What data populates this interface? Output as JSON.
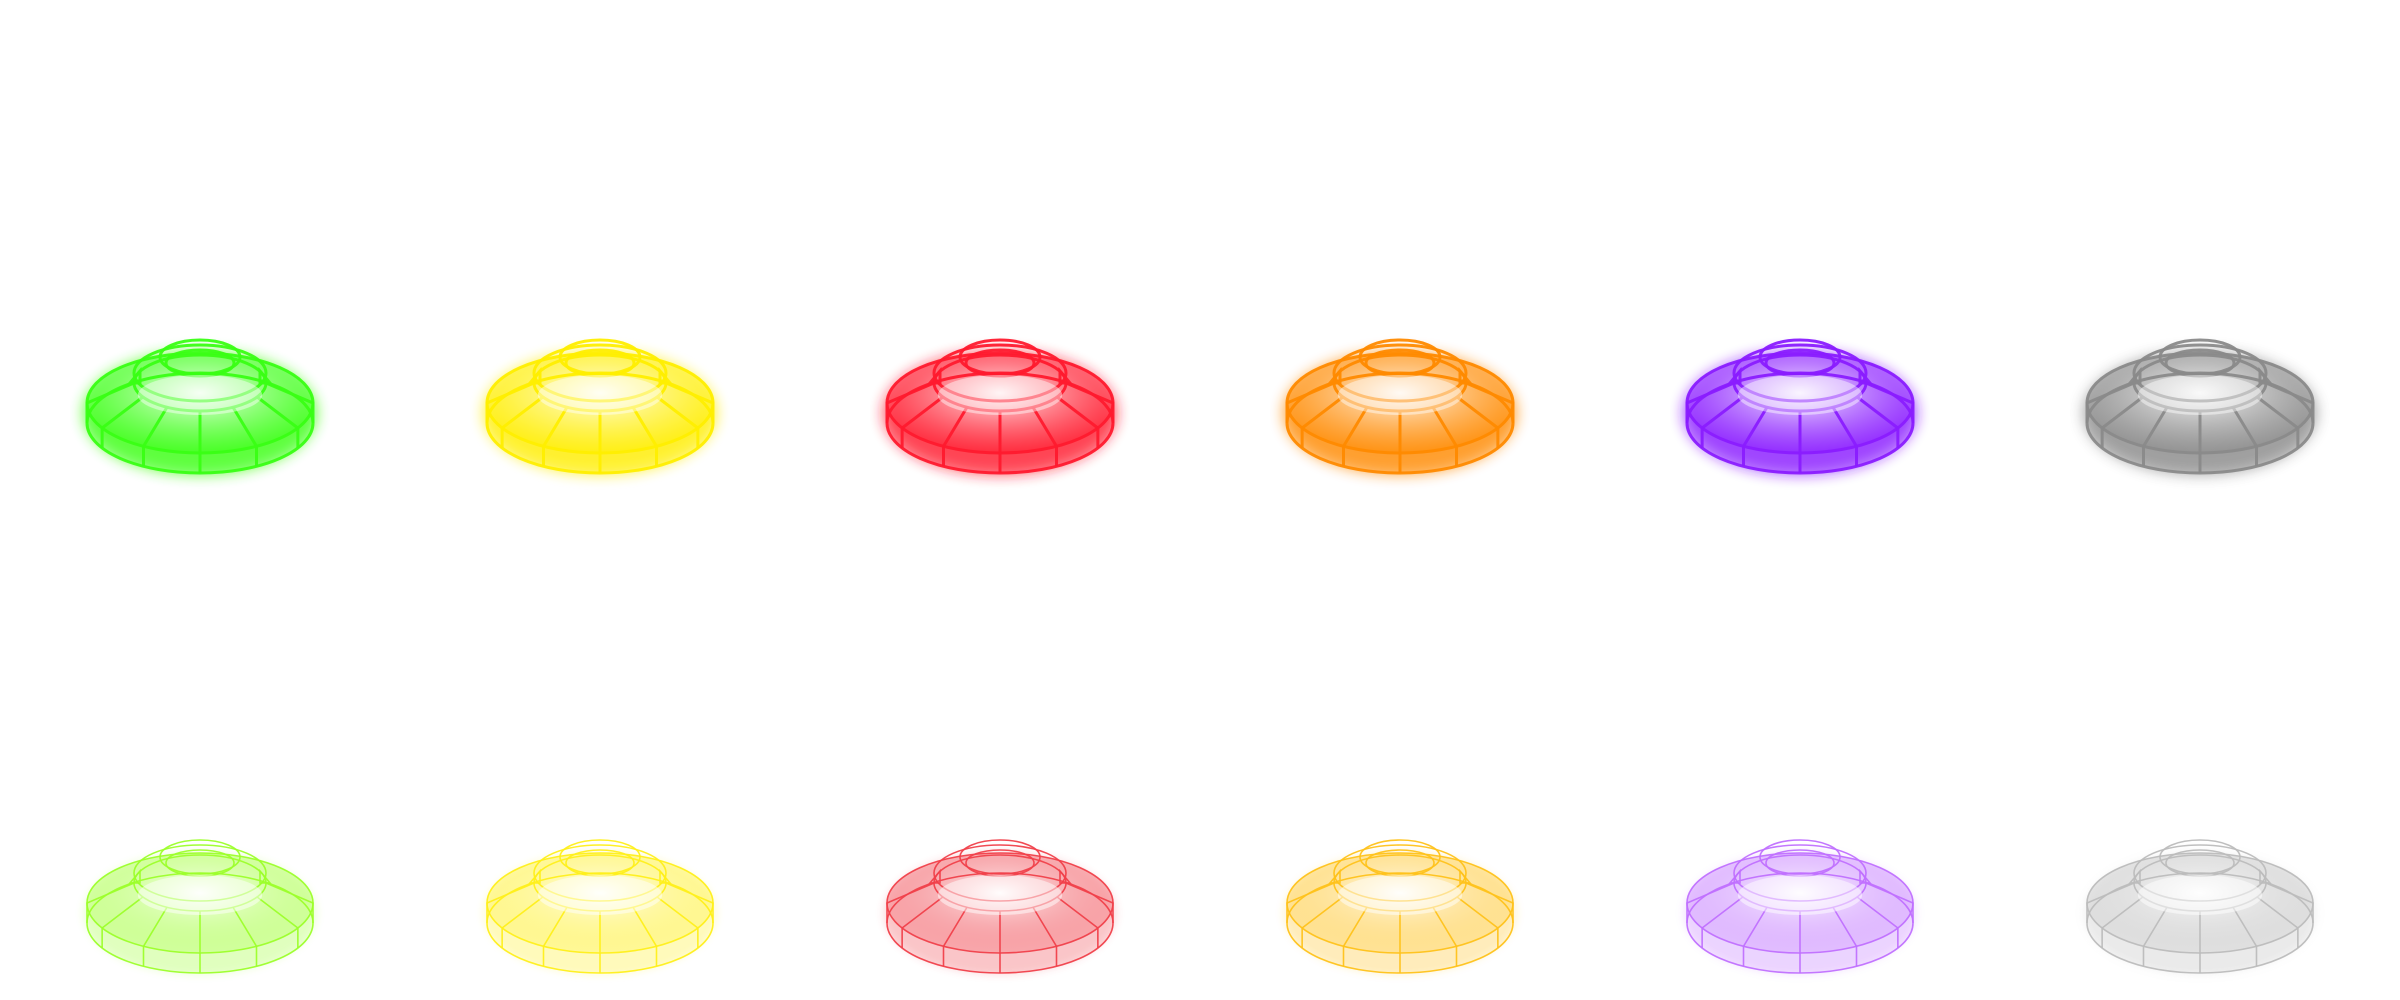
{
  "rows": [
    {
      "style": "glow",
      "items": [
        {
          "icon": "green-dome-icon",
          "color": "#39ff14"
        },
        {
          "icon": "yellow-dome-icon",
          "color": "#ffee00"
        },
        {
          "icon": "red-dome-icon",
          "color": "#ff1a2e"
        },
        {
          "icon": "orange-dome-icon",
          "color": "#ff8a00"
        },
        {
          "icon": "purple-dome-icon",
          "color": "#8a1cff"
        },
        {
          "icon": "gray-dome-icon",
          "color": "#8a8a8a"
        }
      ]
    },
    {
      "style": "light",
      "items": [
        {
          "icon": "lime-dome-light-icon",
          "color": "#9cff2a"
        },
        {
          "icon": "yellow-dome-light-icon",
          "color": "#ffef1a"
        },
        {
          "icon": "red-dome-light-icon",
          "color": "#f0404a"
        },
        {
          "icon": "orange-dome-light-icon",
          "color": "#ffc21a"
        },
        {
          "icon": "violet-dome-light-icon",
          "color": "#c070ff"
        },
        {
          "icon": "silver-dome-light-icon",
          "color": "#bcbcbc"
        }
      ]
    }
  ]
}
